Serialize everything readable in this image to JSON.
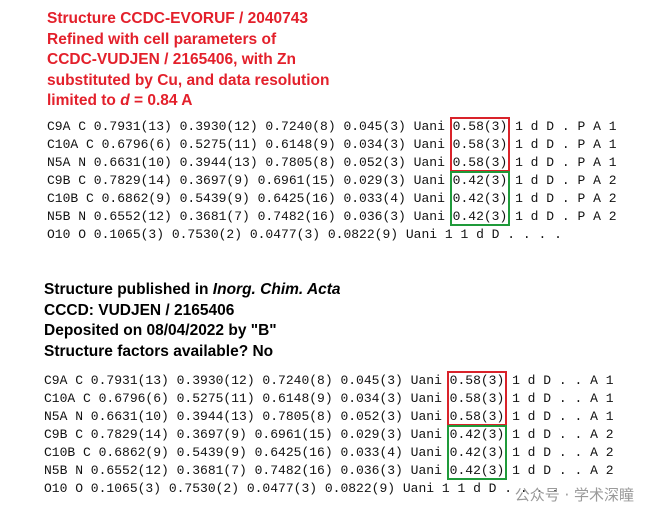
{
  "sections": [
    {
      "heading": [
        [
          "Structure CCDC-EVORUF / 2040743"
        ],
        [
          "Refined with cell parameters of"
        ],
        [
          "CCDC-VUDJEN / 2165406, with Zn"
        ],
        [
          "substituted by Cu, and data resolution"
        ],
        [
          "limited to ",
          "d",
          " = 0.84 A"
        ]
      ],
      "rows": [
        {
          "pre": "C9A C 0.7931(13) 0.3930(12) 0.7240(8) 0.045(3) Uani ",
          "occ": "0.58(3)",
          "post": " 1 d D . P A 1",
          "box": "#d9232a"
        },
        {
          "pre": "C10A C 0.6796(6) 0.5275(11) 0.6148(9) 0.034(3) Uani ",
          "occ": "0.58(3)",
          "post": " 1 d D . P A 1",
          "box": "#d9232a"
        },
        {
          "pre": "N5A N 0.6631(10) 0.3944(13) 0.7805(8) 0.052(3) Uani ",
          "occ": "0.58(3)",
          "post": " 1 d D . P A 1",
          "box": "#d9232a"
        },
        {
          "pre": "C9B C 0.7829(14) 0.3697(9) 0.6961(15) 0.029(3) Uani ",
          "occ": "0.42(3)",
          "post": " 1 d D . P A 2",
          "box": "#1f9a3a"
        },
        {
          "pre": "C10B C 0.6862(9) 0.5439(9) 0.6425(16) 0.033(4) Uani ",
          "occ": "0.42(3)",
          "post": " 1 d D . P A 2",
          "box": "#1f9a3a"
        },
        {
          "pre": "N5B N 0.6552(12) 0.3681(7) 0.7482(16) 0.036(3) Uani ",
          "occ": "0.42(3)",
          "post": " 1 d D . P A 2",
          "box": "#1f9a3a"
        },
        {
          "pre": "O10 O 0.1065(3) 0.7530(2) 0.0477(3) 0.0822(9) Uani 1 1 d D . . . ."
        }
      ]
    },
    {
      "heading": [
        [
          "Structure published in ",
          "Inorg. Chim. Acta"
        ],
        [
          "CCCD: VUDJEN / 2165406"
        ],
        [
          "Deposited on 08/04/2022 by \"B\""
        ],
        [
          "Structure factors available? No"
        ]
      ],
      "rows": [
        {
          "pre": "C9A C 0.7931(13) 0.3930(12) 0.7240(8) 0.045(3) Uani ",
          "occ": "0.58(3)",
          "post": " 1 d D . . A 1",
          "box": "#d9232a"
        },
        {
          "pre": "C10A C 0.6796(6) 0.5275(11) 0.6148(9) 0.034(3) Uani ",
          "occ": "0.58(3)",
          "post": " 1 d D . . A 1",
          "box": "#d9232a"
        },
        {
          "pre": "N5A N 0.6631(10) 0.3944(13) 0.7805(8) 0.052(3) Uani ",
          "occ": "0.58(3)",
          "post": " 1 d D . . A 1",
          "box": "#d9232a"
        },
        {
          "pre": "C9B C 0.7829(14) 0.3697(9) 0.6961(15) 0.029(3) Uani ",
          "occ": "0.42(3)",
          "post": " 1 d D . . A 2",
          "box": "#1f9a3a"
        },
        {
          "pre": "C10B C 0.6862(9) 0.5439(9) 0.6425(16) 0.033(4) Uani ",
          "occ": "0.42(3)",
          "post": " 1 d D . . A 2",
          "box": "#1f9a3a"
        },
        {
          "pre": "N5B N 0.6552(12) 0.3681(7) 0.7482(16) 0.036(3) Uani ",
          "occ": "0.42(3)",
          "post": " 1 d D . . A 2",
          "box": "#1f9a3a"
        },
        {
          "pre": "O10 O 0.1065(3) 0.7530(2) 0.0477(3) 0.0822(9) Uani 1 1 d D . . . ."
        }
      ]
    }
  ],
  "watermark": "公众号 · 学术深瞳"
}
